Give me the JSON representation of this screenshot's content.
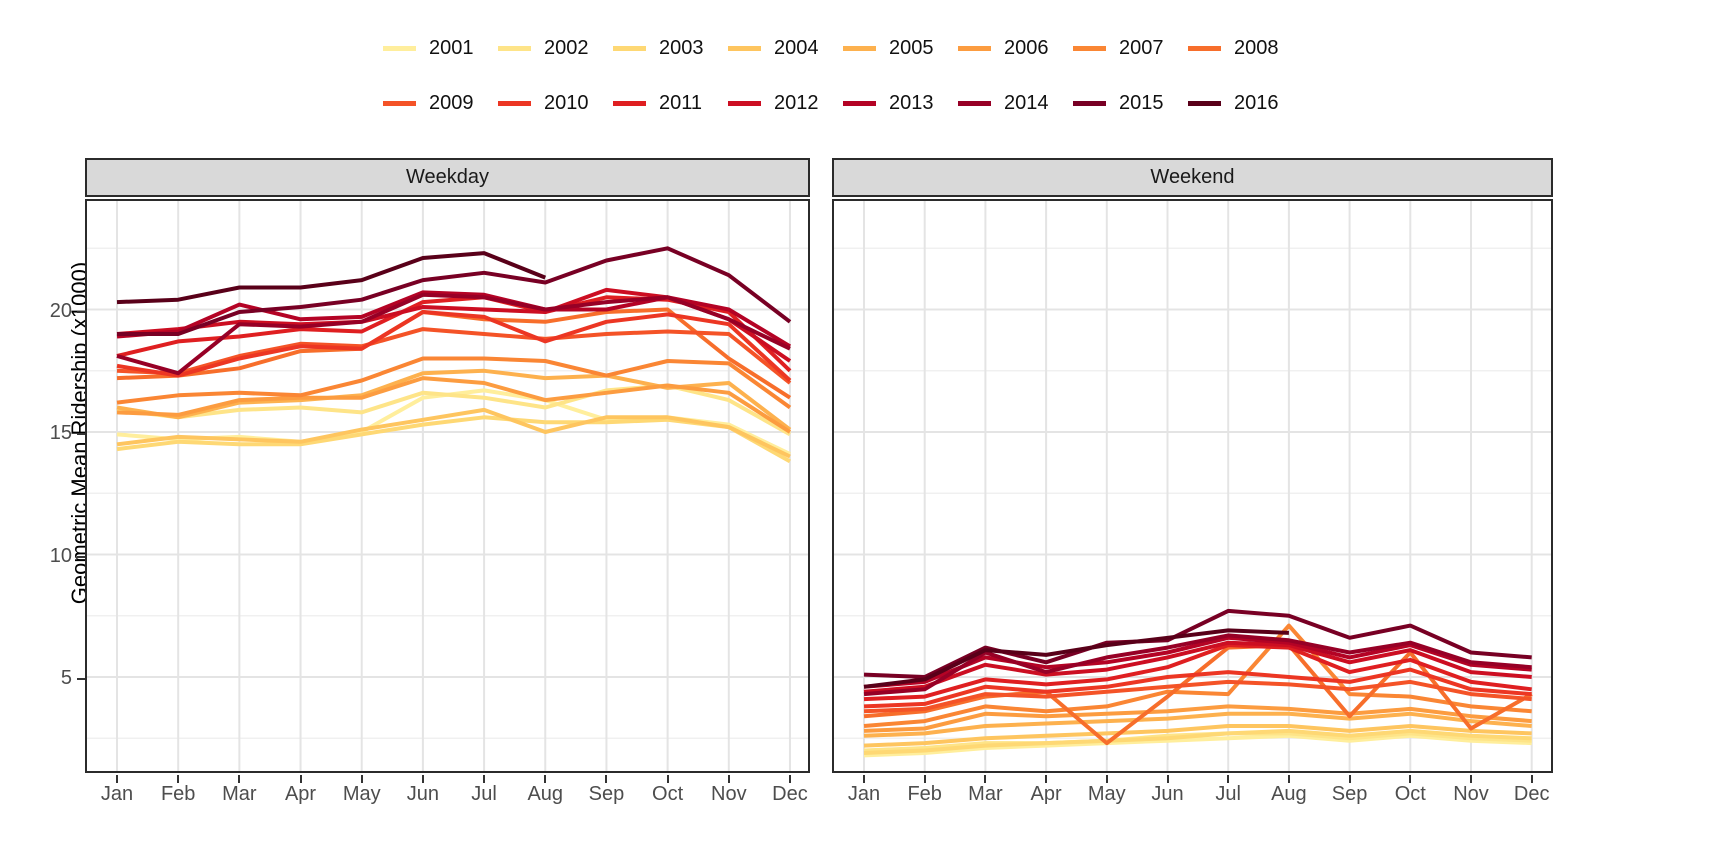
{
  "chart_data": {
    "type": "line",
    "ylabel": "Geometric Mean Ridership (x1000)",
    "x_categories": [
      "Jan",
      "Feb",
      "Mar",
      "Apr",
      "May",
      "Jun",
      "Jul",
      "Aug",
      "Sep",
      "Oct",
      "Nov",
      "Dec"
    ],
    "y_tick_labels": [
      "5",
      "10",
      "15",
      "20"
    ],
    "y_ticks": [
      5,
      10,
      15,
      20
    ],
    "y_minor_ticks": [
      2.5,
      7.5,
      12.5,
      17.5,
      22.5
    ],
    "ylim": [
      1.2,
      24.3
    ],
    "grid": "on",
    "legend_position": "top",
    "years": [
      {
        "label": "2001",
        "color": "#FFEE9C"
      },
      {
        "label": "2002",
        "color": "#FEE488"
      },
      {
        "label": "2003",
        "color": "#FED874"
      },
      {
        "label": "2004",
        "color": "#FEC55F"
      },
      {
        "label": "2005",
        "color": "#FDB14E"
      },
      {
        "label": "2006",
        "color": "#FC9C40"
      },
      {
        "label": "2007",
        "color": "#FA8634"
      },
      {
        "label": "2008",
        "color": "#F76E2B"
      },
      {
        "label": "2009",
        "color": "#F45327"
      },
      {
        "label": "2010",
        "color": "#EC3623"
      },
      {
        "label": "2011",
        "color": "#DF1F21"
      },
      {
        "label": "2012",
        "color": "#CC0E22"
      },
      {
        "label": "2013",
        "color": "#B40325"
      },
      {
        "label": "2014",
        "color": "#970026"
      },
      {
        "label": "2015",
        "color": "#780024"
      },
      {
        "label": "2016",
        "color": "#590019"
      }
    ],
    "facets": [
      {
        "label": "Weekday",
        "series": [
          {
            "name": "2001",
            "values": [
              14.9,
              14.7,
              14.8,
              14.6,
              15.0,
              16.4,
              16.7,
              16.3,
              15.5,
              15.6,
              15.3,
              14.1
            ]
          },
          {
            "name": "2002",
            "values": [
              15.9,
              15.6,
              15.9,
              16.0,
              15.8,
              16.6,
              16.4,
              16.0,
              16.7,
              16.9,
              16.3,
              14.9
            ]
          },
          {
            "name": "2003",
            "values": [
              14.3,
              14.6,
              14.5,
              14.5,
              14.9,
              15.3,
              15.6,
              15.4,
              15.4,
              15.5,
              15.2,
              13.8
            ]
          },
          {
            "name": "2004",
            "values": [
              14.5,
              14.8,
              14.7,
              14.6,
              15.1,
              15.5,
              15.9,
              15.0,
              15.6,
              15.6,
              15.2,
              14.0
            ]
          },
          {
            "name": "2005",
            "values": [
              16.0,
              15.6,
              16.2,
              16.3,
              16.5,
              17.4,
              17.5,
              17.2,
              17.3,
              16.8,
              17.0,
              15.1
            ]
          },
          {
            "name": "2006",
            "values": [
              15.8,
              15.7,
              16.3,
              16.4,
              16.4,
              17.2,
              17.0,
              16.3,
              16.6,
              16.9,
              16.6,
              15.0
            ]
          },
          {
            "name": "2007",
            "values": [
              16.2,
              16.5,
              16.6,
              16.5,
              17.1,
              18.0,
              18.0,
              17.9,
              17.3,
              17.9,
              17.8,
              16.0
            ]
          },
          {
            "name": "2008",
            "values": [
              17.2,
              17.3,
              17.6,
              18.3,
              18.4,
              19.9,
              19.6,
              19.5,
              19.9,
              20.0,
              18.0,
              16.4
            ]
          },
          {
            "name": "2009",
            "values": [
              17.5,
              17.4,
              18.1,
              18.6,
              18.5,
              19.2,
              19.0,
              18.8,
              19.0,
              19.1,
              19.0,
              17.0
            ]
          },
          {
            "name": "2010",
            "values": [
              17.7,
              17.3,
              18.0,
              18.5,
              18.4,
              19.9,
              19.7,
              18.7,
              19.5,
              19.8,
              19.4,
              17.1
            ]
          },
          {
            "name": "2011",
            "values": [
              18.1,
              18.7,
              18.9,
              19.2,
              19.1,
              20.3,
              20.5,
              19.9,
              20.5,
              20.4,
              19.9,
              17.5
            ]
          },
          {
            "name": "2012",
            "values": [
              19.0,
              19.2,
              19.5,
              19.4,
              19.5,
              20.1,
              20.0,
              19.9,
              20.8,
              20.5,
              19.6,
              17.9
            ]
          },
          {
            "name": "2013",
            "values": [
              18.9,
              19.1,
              20.2,
              19.6,
              19.7,
              20.7,
              20.6,
              20.0,
              20.0,
              20.5,
              20.0,
              18.5
            ]
          },
          {
            "name": "2014",
            "values": [
              18.1,
              17.4,
              19.4,
              19.3,
              19.5,
              20.6,
              20.5,
              20.0,
              20.3,
              20.5,
              19.6,
              18.4
            ]
          },
          {
            "name": "2015",
            "values": [
              19.0,
              19.0,
              19.9,
              20.1,
              20.4,
              21.2,
              21.5,
              21.1,
              22.0,
              22.5,
              21.4,
              19.5
            ]
          },
          {
            "name": "2016",
            "values": [
              20.3,
              20.4,
              20.9,
              20.9,
              21.2,
              22.1,
              22.3,
              21.3
            ]
          }
        ]
      },
      {
        "label": "Weekend",
        "series": [
          {
            "name": "2001",
            "values": [
              1.8,
              1.9,
              2.1,
              2.2,
              2.3,
              2.4,
              2.5,
              2.6,
              2.4,
              2.6,
              2.4,
              2.3
            ]
          },
          {
            "name": "2002",
            "values": [
              2.0,
              2.1,
              2.3,
              2.3,
              2.4,
              2.6,
              2.7,
              2.7,
              2.5,
              2.7,
              2.5,
              2.4
            ]
          },
          {
            "name": "2003",
            "values": [
              1.9,
              2.0,
              2.2,
              2.3,
              2.4,
              2.5,
              2.7,
              2.8,
              2.6,
              2.8,
              2.6,
              2.5
            ]
          },
          {
            "name": "2004",
            "values": [
              2.2,
              2.3,
              2.5,
              2.6,
              2.7,
              2.8,
              3.0,
              3.0,
              2.8,
              3.0,
              2.8,
              2.7
            ]
          },
          {
            "name": "2005",
            "values": [
              2.6,
              2.7,
              3.0,
              3.1,
              3.2,
              3.3,
              3.5,
              3.5,
              3.3,
              3.5,
              3.2,
              3.0
            ]
          },
          {
            "name": "2006",
            "values": [
              2.8,
              2.9,
              3.5,
              3.4,
              3.5,
              3.6,
              3.8,
              3.7,
              3.5,
              3.7,
              3.4,
              3.2
            ]
          },
          {
            "name": "2007",
            "values": [
              3.0,
              3.2,
              3.8,
              3.6,
              3.8,
              4.4,
              4.3,
              7.1,
              4.3,
              4.2,
              3.8,
              3.6
            ]
          },
          {
            "name": "2008",
            "values": [
              3.4,
              3.6,
              4.2,
              4.4,
              2.3,
              4.2,
              6.2,
              6.3,
              3.4,
              6.0,
              2.9,
              4.3
            ]
          },
          {
            "name": "2009",
            "values": [
              3.6,
              3.7,
              4.3,
              4.2,
              4.4,
              4.6,
              4.8,
              4.7,
              4.5,
              4.8,
              4.3,
              4.1
            ]
          },
          {
            "name": "2010",
            "values": [
              3.8,
              3.9,
              4.6,
              4.4,
              4.6,
              5.0,
              5.2,
              5.0,
              4.8,
              5.3,
              4.5,
              4.3
            ]
          },
          {
            "name": "2011",
            "values": [
              4.1,
              4.2,
              4.9,
              4.7,
              4.9,
              5.4,
              6.3,
              6.2,
              5.2,
              5.7,
              4.8,
              4.5
            ]
          },
          {
            "name": "2012",
            "values": [
              4.4,
              4.6,
              5.5,
              5.1,
              5.3,
              5.8,
              6.4,
              6.3,
              5.6,
              6.1,
              5.2,
              5.0
            ]
          },
          {
            "name": "2013",
            "values": [
              4.6,
              4.8,
              5.8,
              5.4,
              5.6,
              6.0,
              6.6,
              6.4,
              5.8,
              6.3,
              5.5,
              5.3
            ]
          },
          {
            "name": "2014",
            "values": [
              4.3,
              4.5,
              6.0,
              5.2,
              5.8,
              6.2,
              6.7,
              6.5,
              6.0,
              6.4,
              5.6,
              5.4
            ]
          },
          {
            "name": "2015",
            "values": [
              5.1,
              5.0,
              6.2,
              5.6,
              6.4,
              6.5,
              7.7,
              7.5,
              6.6,
              7.1,
              6.0,
              5.8
            ]
          },
          {
            "name": "2016",
            "values": [
              4.6,
              4.9,
              6.1,
              5.9,
              6.3,
              6.6,
              6.9,
              6.8
            ]
          }
        ]
      }
    ],
    "style": {
      "grid_major_color": "#E4E4E4",
      "grid_minor_color": "#F0F0F0",
      "strip_bg_color": "#D9D9D9",
      "panel_border_color": "#2B2B2B",
      "axis_text_color": "#4D4D4D",
      "line_width": 4
    }
  }
}
